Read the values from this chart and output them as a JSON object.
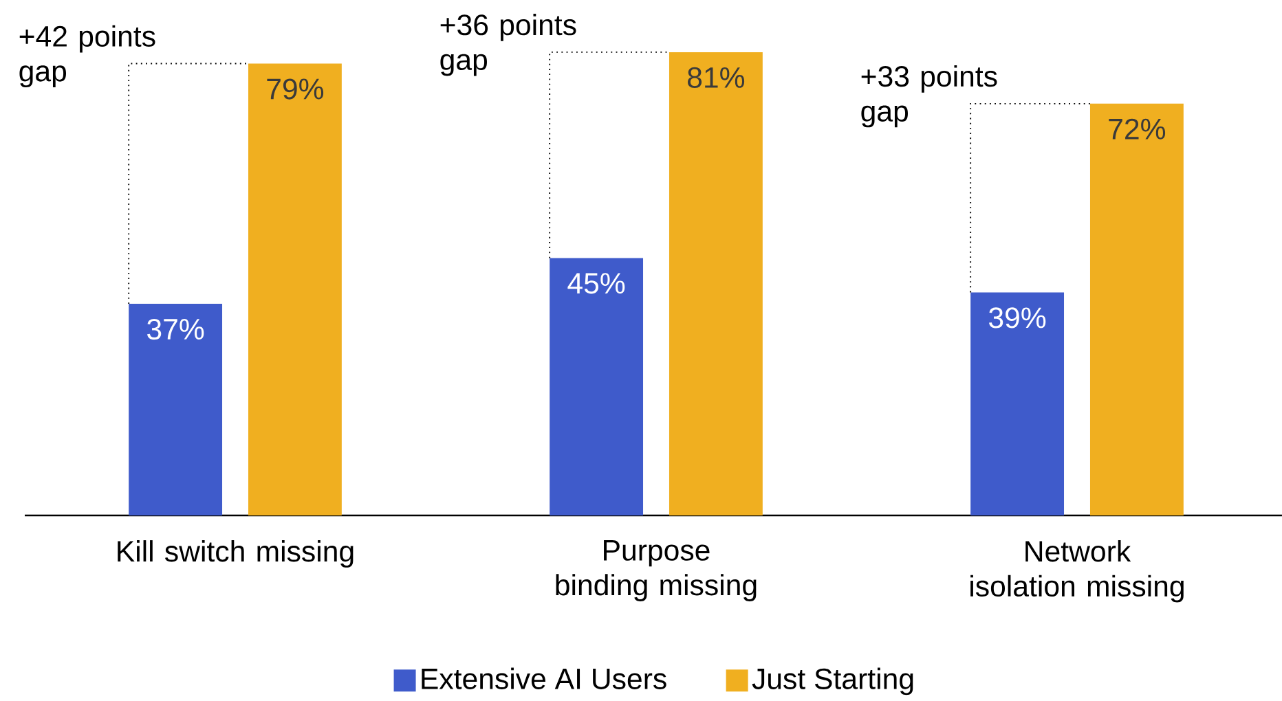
{
  "chart_data": {
    "type": "bar",
    "categories": [
      "Kill switch missing",
      "Purpose binding missing",
      "Network isolation missing"
    ],
    "series": [
      {
        "name": "Extensive AI Users",
        "color": "#3f5bcb",
        "values": [
          37,
          45,
          39
        ],
        "value_labels": [
          "37%",
          "45%",
          "39%"
        ]
      },
      {
        "name": "Just Starting",
        "color": "#f0af20",
        "values": [
          79,
          81,
          72
        ],
        "value_labels": [
          "79%",
          "81%",
          "72%"
        ]
      }
    ],
    "annotations": [
      "+42 points gap",
      "+36 points gap",
      "+33 points gap"
    ],
    "legend": "bottom"
  }
}
